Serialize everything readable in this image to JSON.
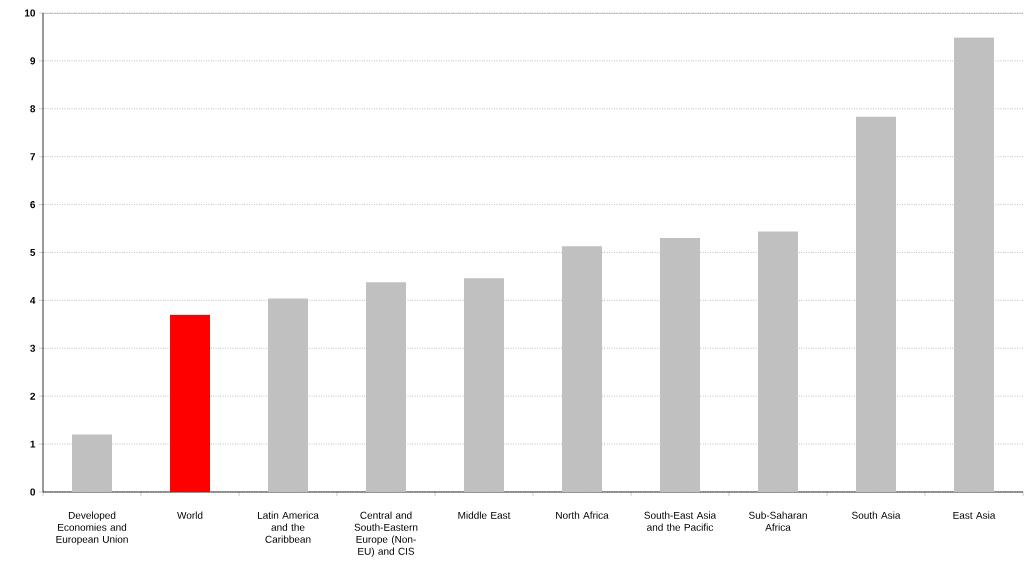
{
  "chart_data": {
    "type": "bar",
    "categories": [
      "Developed Economies and European Union",
      "World",
      "Latin America and the Caribbean",
      "Central and South-Eastern Europe (Non-EU) and CIS",
      "Middle East",
      "North Africa",
      "South-East Asia and the Pacific",
      "Sub-Saharan Africa",
      "South Asia",
      "East Asia"
    ],
    "values": [
      1.2,
      3.7,
      4.04,
      4.38,
      4.46,
      5.13,
      5.3,
      5.44,
      7.84,
      9.49
    ],
    "colors": [
      "#c0c0c0",
      "#ff0000",
      "#c0c0c0",
      "#c0c0c0",
      "#c0c0c0",
      "#c0c0c0",
      "#c0c0c0",
      "#c0c0c0",
      "#c0c0c0",
      "#c0c0c0"
    ],
    "ylim": [
      0,
      10
    ],
    "yticks": [
      0,
      1,
      2,
      3,
      4,
      5,
      6,
      7,
      8,
      9,
      10
    ],
    "grid": "y"
  }
}
